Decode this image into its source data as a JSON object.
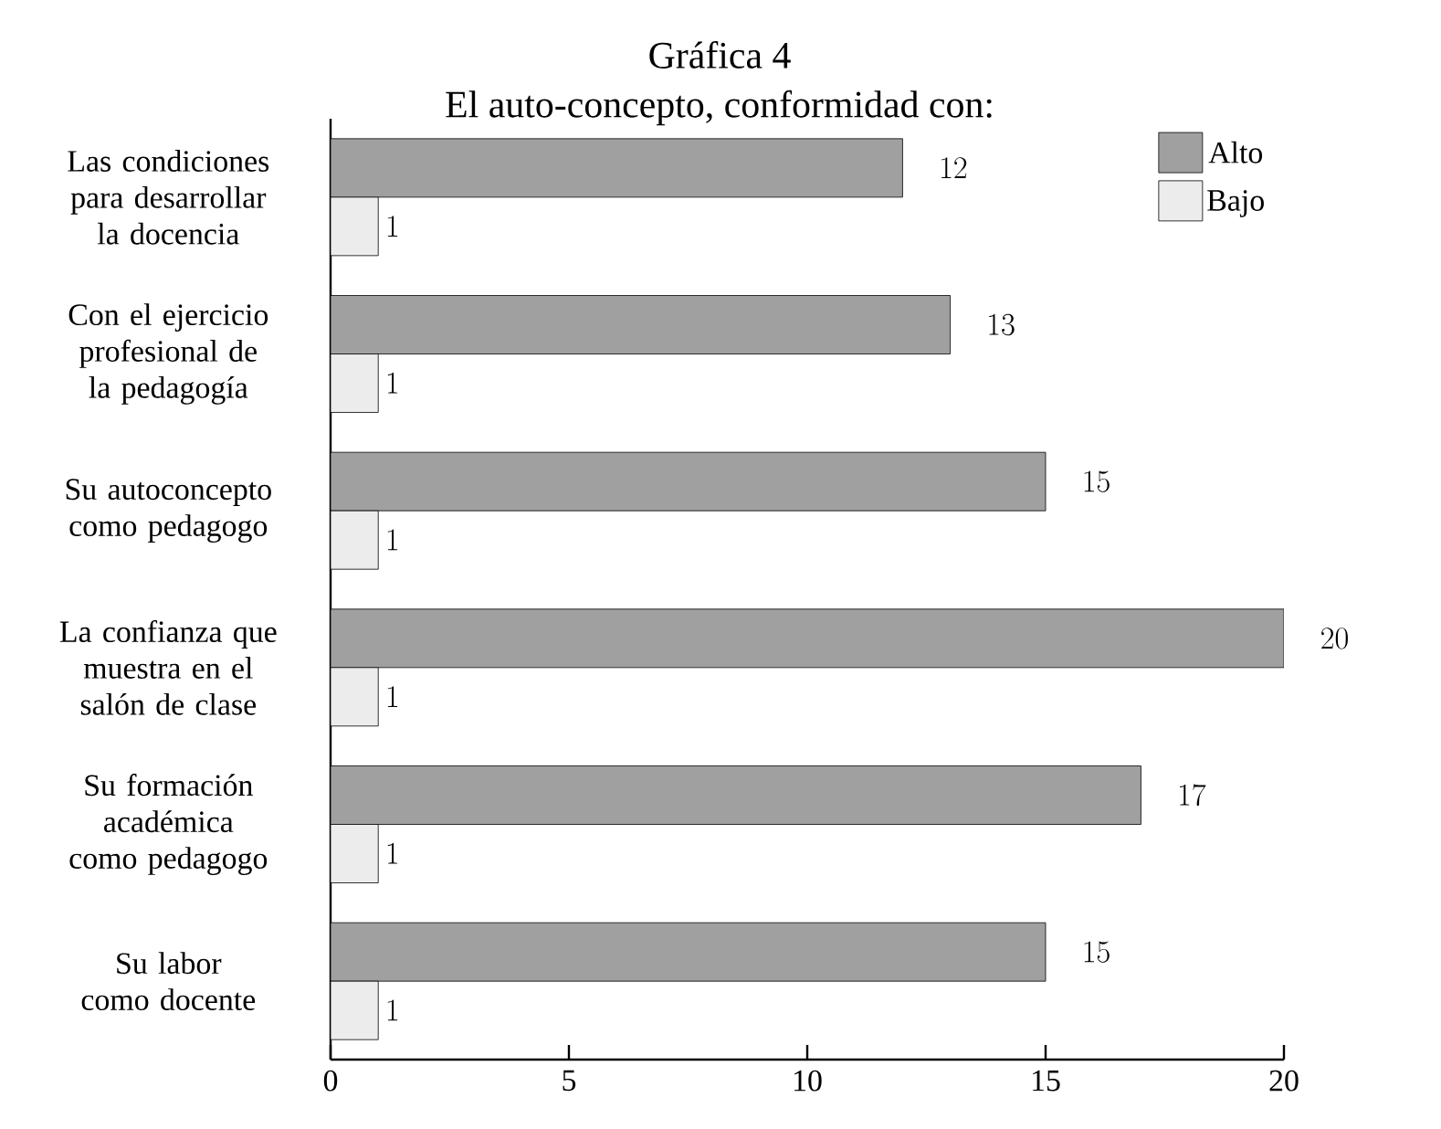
{
  "chart_data": {
    "type": "bar",
    "orientation": "horizontal",
    "title": "Gráfica 4",
    "subtitle": "El auto-concepto, conformidad con:",
    "categories": [
      "Las condiciones para desarrollar la docencia",
      "Con el ejercicio profesional de la pedagogía",
      "Su autoconcepto como pedagogo",
      "La confianza que muestra en el salón de clase",
      "Su formación académica como pedagogo",
      "Su labor como docente"
    ],
    "series": [
      {
        "name": "Alto",
        "color": "#a0a0a0",
        "values": [
          12,
          13,
          15,
          20,
          17,
          15
        ]
      },
      {
        "name": "Bajo",
        "color": "#ececec",
        "values": [
          1,
          1,
          1,
          1,
          1,
          1
        ]
      }
    ],
    "xlim": [
      0,
      20
    ],
    "xticks": [
      0,
      5,
      10,
      15,
      20
    ],
    "data_labels": true,
    "legend": "top right",
    "grid": false
  }
}
